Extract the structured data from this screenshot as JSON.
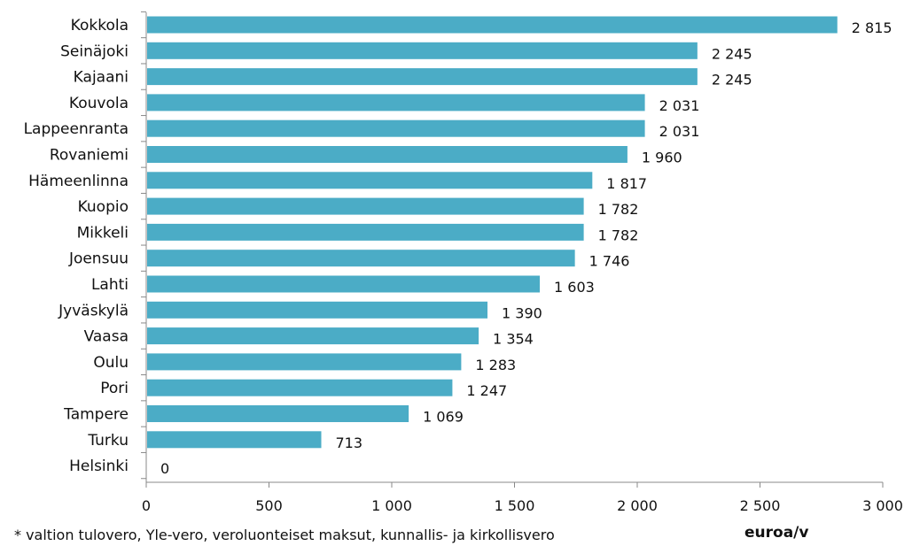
{
  "chart_data": {
    "type": "bar",
    "orientation": "horizontal",
    "categories": [
      "Kokkola",
      "Seinäjoki",
      "Kajaani",
      "Kouvola",
      "Lappeenranta",
      "Rovaniemi",
      "Hämeenlinna",
      "Kuopio",
      "Mikkeli",
      "Joensuu",
      "Lahti",
      "Jyväskylä",
      "Vaasa",
      "Oulu",
      "Pori",
      "Tampere",
      "Turku",
      "Helsinki"
    ],
    "values": [
      2815,
      2245,
      2245,
      2031,
      2031,
      1960,
      1817,
      1782,
      1782,
      1746,
      1603,
      1390,
      1354,
      1283,
      1247,
      1069,
      713,
      0
    ],
    "value_labels": [
      "2 815",
      "2 245",
      "2 245",
      "2 031",
      "2 031",
      "1 960",
      "1 817",
      "1 782",
      "1 782",
      "1 746",
      "1 603",
      "1 390",
      "1 354",
      "1 283",
      "1 247",
      "1 069",
      "713",
      "0"
    ],
    "x_ticks": [
      0,
      500,
      1000,
      1500,
      2000,
      2500,
      3000
    ],
    "x_tick_labels": [
      "0",
      "500",
      "1 000",
      "1 500",
      "2 000",
      "2 500",
      "3 000"
    ],
    "xlim": [
      0,
      3000
    ],
    "xlabel": "euroa/v",
    "grid": false,
    "bar_color": "#4bacc6"
  },
  "footnote": "* valtion tulovero, Yle-vero, veroluonteiset maksut, kunnallis- ja kirkollisvero"
}
